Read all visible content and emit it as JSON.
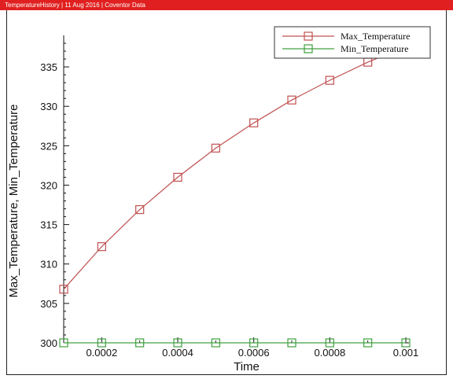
{
  "window": {
    "title_segments": [
      "TemperatureHistory",
      "11 Aug 2016",
      "Coventor Data"
    ],
    "title_separator": " | "
  },
  "chart_data": {
    "type": "line",
    "xlabel": "Time",
    "ylabel": "Max_Temperature, Min_Temperature",
    "xlim": [
      0.0001,
      0.001
    ],
    "ylim": [
      300,
      338
    ],
    "x_ticks": [
      0.0002,
      0.0004,
      0.0006,
      0.0008,
      0.001
    ],
    "x_tick_labels": [
      "0.0002",
      "0.0004",
      "0.0006",
      "0.0008",
      "0.001"
    ],
    "y_ticks": [
      300,
      305,
      310,
      315,
      320,
      325,
      330,
      335
    ],
    "y_tick_labels": [
      "300",
      "305",
      "310",
      "315",
      "320",
      "325",
      "330",
      "335"
    ],
    "grid": false,
    "legend_placement": "top-right",
    "marker": "square",
    "x": [
      0.0001,
      0.0002,
      0.0003,
      0.0004,
      0.0005,
      0.0006,
      0.0007,
      0.0008,
      0.0009,
      0.001
    ],
    "series": [
      {
        "name": "Max_Temperature",
        "color": "#c05050",
        "values": [
          306.8,
          312.2,
          316.9,
          321.0,
          324.7,
          327.9,
          330.8,
          333.3,
          335.6,
          337.6
        ]
      },
      {
        "name": "Min_Temperature",
        "color": "#40a040",
        "values": [
          300,
          300,
          300,
          300,
          300,
          300,
          300,
          300,
          300,
          300
        ]
      }
    ]
  }
}
